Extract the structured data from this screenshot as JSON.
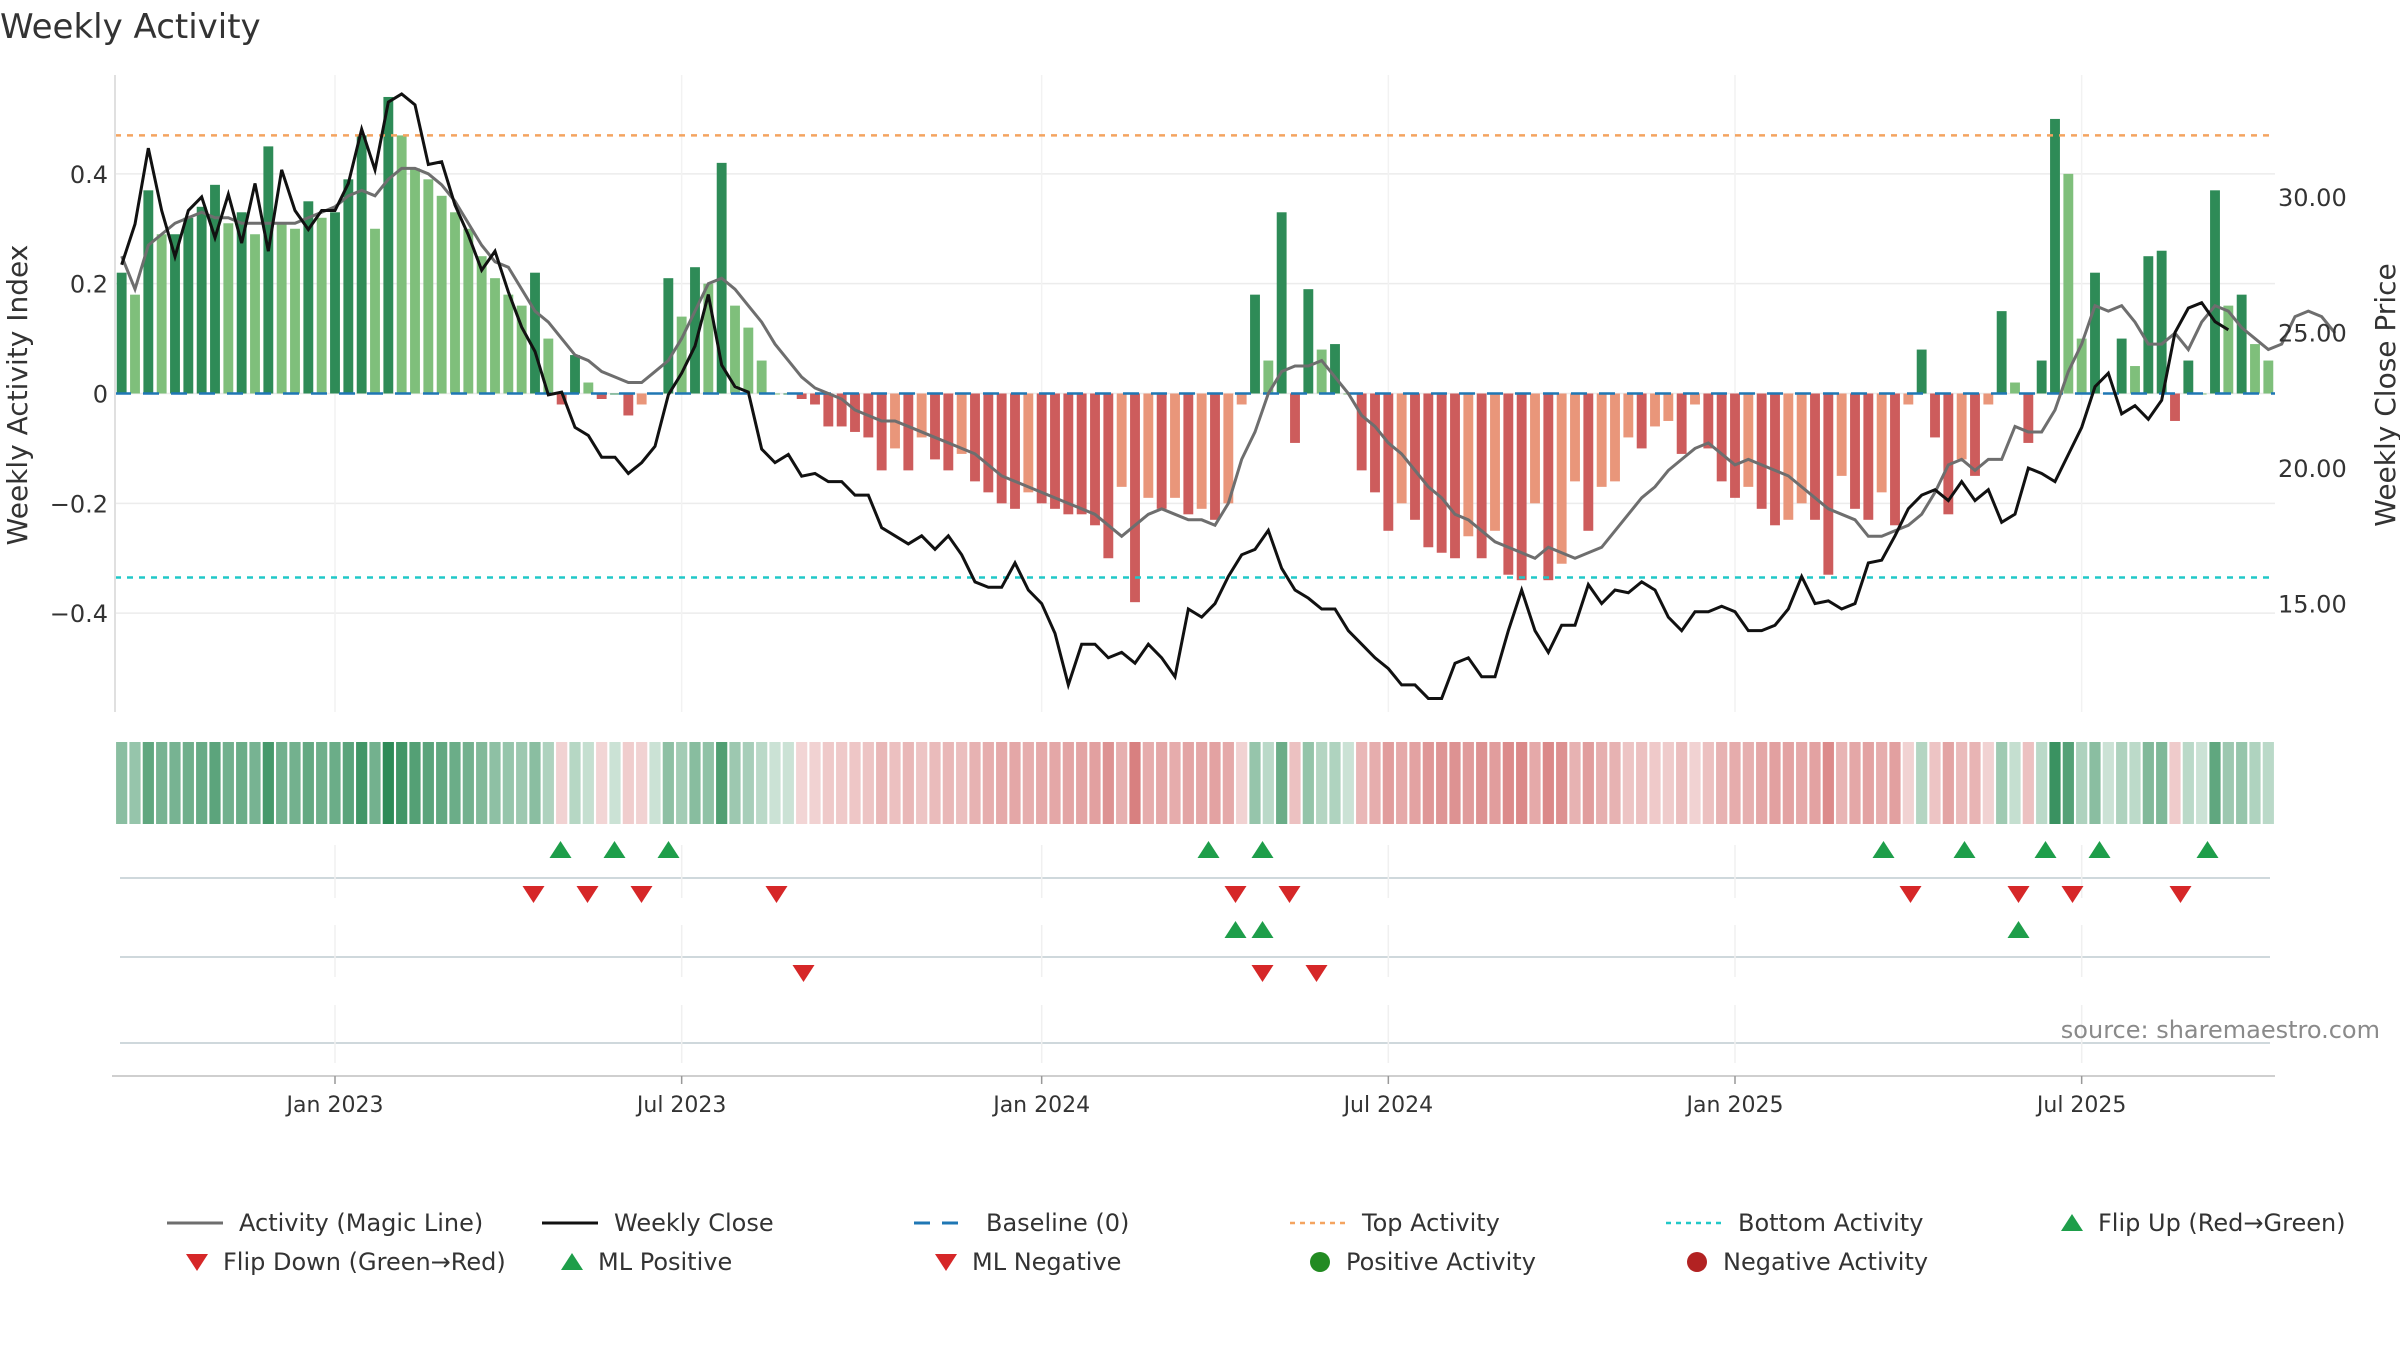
{
  "title": "Weekly Activity",
  "source": "source: sharemaestro.com",
  "colors": {
    "strong_green": "#2e8b57",
    "light_green": "#7fbf7b",
    "strong_red": "#cd5c5c",
    "light_red": "#e9967a",
    "magic_line": "#6e6e6e",
    "close_line": "#111111",
    "baseline": "#1f77b4",
    "top": "#f4a460",
    "bottom": "#20c8c8",
    "flip_up": "#1e9e4a",
    "flip_down": "#d62728",
    "positive_dot": "#228b22",
    "negative_dot": "#b22222"
  },
  "chart_data": {
    "type": "bar",
    "title": "Weekly Activity",
    "ylabel": "Weekly Activity Index",
    "y2label": "Weekly Close Price",
    "ylim": [
      -0.58,
      0.58
    ],
    "y2lim": [
      11.0,
      34.5
    ],
    "yticks": [
      -0.4,
      -0.2,
      0,
      0.2,
      0.4
    ],
    "ytick_labels": [
      "−0.4",
      "−0.2",
      "0",
      "0.2",
      "0.4"
    ],
    "y2ticks": [
      15,
      20,
      25,
      30
    ],
    "y2tick_labels": [
      "15.00",
      "20.00",
      "25.00",
      "30.00"
    ],
    "x_start_week": 0,
    "xticks": [
      16,
      42,
      69,
      95,
      121,
      147
    ],
    "xtick_labels": [
      "Jan 2023",
      "Jul 2023",
      "Jan 2024",
      "Jul 2024",
      "Jan 2025",
      "Jul 2025"
    ],
    "top_activity": 0.47,
    "bottom_activity": -0.335,
    "baseline": 0,
    "activity": [
      0.22,
      0.18,
      0.37,
      0.29,
      0.29,
      0.32,
      0.34,
      0.38,
      0.31,
      0.33,
      0.29,
      0.45,
      0.31,
      0.3,
      0.35,
      0.32,
      0.33,
      0.39,
      0.47,
      0.3,
      0.54,
      0.47,
      0.41,
      0.39,
      0.36,
      0.33,
      0.3,
      0.25,
      0.21,
      0.18,
      0.16,
      0.22,
      0.1,
      -0.02,
      0.07,
      0.02,
      -0.01,
      0.0,
      -0.04,
      -0.02,
      0.0,
      0.21,
      0.14,
      0.23,
      0.2,
      0.42,
      0.16,
      0.12,
      0.06,
      0.0,
      0.0,
      -0.01,
      -0.02,
      -0.06,
      -0.06,
      -0.07,
      -0.08,
      -0.14,
      -0.1,
      -0.14,
      -0.08,
      -0.12,
      -0.14,
      -0.11,
      -0.16,
      -0.18,
      -0.2,
      -0.21,
      -0.18,
      -0.2,
      -0.21,
      -0.22,
      -0.22,
      -0.24,
      -0.3,
      -0.17,
      -0.38,
      -0.19,
      -0.21,
      -0.19,
      -0.22,
      -0.21,
      -0.23,
      -0.2,
      -0.02,
      0.18,
      0.06,
      0.33,
      -0.09,
      0.19,
      0.08,
      0.09,
      0.0,
      -0.14,
      -0.18,
      -0.25,
      -0.2,
      -0.23,
      -0.28,
      -0.29,
      -0.3,
      -0.26,
      -0.3,
      -0.25,
      -0.33,
      -0.34,
      -0.2,
      -0.34,
      -0.31,
      -0.16,
      -0.25,
      -0.17,
      -0.16,
      -0.08,
      -0.1,
      -0.06,
      -0.05,
      -0.11,
      -0.02,
      -0.1,
      -0.16,
      -0.19,
      -0.17,
      -0.21,
      -0.24,
      -0.23,
      -0.2,
      -0.23,
      -0.33,
      -0.15,
      -0.21,
      -0.23,
      -0.18,
      -0.24,
      -0.02,
      0.08,
      -0.08,
      -0.22,
      -0.12,
      -0.15,
      -0.02,
      0.15,
      0.02,
      -0.09,
      0.06,
      0.5,
      0.4,
      0.1,
      0.22,
      0.0,
      0.1,
      0.05,
      0.25,
      0.26,
      -0.05,
      0.06,
      0.0,
      0.37,
      0.16,
      0.18,
      0.09,
      0.06
    ],
    "series": [
      {
        "name": "Activity (Magic Line)",
        "values": [
          0.25,
          0.19,
          0.27,
          0.29,
          0.31,
          0.32,
          0.33,
          0.32,
          0.32,
          0.31,
          0.31,
          0.31,
          0.31,
          0.31,
          0.32,
          0.33,
          0.34,
          0.36,
          0.37,
          0.36,
          0.39,
          0.41,
          0.41,
          0.4,
          0.38,
          0.35,
          0.31,
          0.27,
          0.24,
          0.23,
          0.19,
          0.15,
          0.13,
          0.1,
          0.07,
          0.06,
          0.04,
          0.03,
          0.02,
          0.02,
          0.04,
          0.06,
          0.1,
          0.15,
          0.2,
          0.21,
          0.19,
          0.16,
          0.13,
          0.09,
          0.06,
          0.03,
          0.01,
          0.0,
          -0.01,
          -0.03,
          -0.04,
          -0.05,
          -0.05,
          -0.06,
          -0.07,
          -0.08,
          -0.09,
          -0.1,
          -0.11,
          -0.13,
          -0.15,
          -0.16,
          -0.17,
          -0.18,
          -0.19,
          -0.2,
          -0.21,
          -0.22,
          -0.24,
          -0.26,
          -0.24,
          -0.22,
          -0.21,
          -0.22,
          -0.23,
          -0.23,
          -0.24,
          -0.2,
          -0.12,
          -0.07,
          0.0,
          0.04,
          0.05,
          0.05,
          0.06,
          0.03,
          0.0,
          -0.04,
          -0.06,
          -0.09,
          -0.11,
          -0.14,
          -0.17,
          -0.19,
          -0.22,
          -0.23,
          -0.25,
          -0.27,
          -0.28,
          -0.29,
          -0.3,
          -0.28,
          -0.29,
          -0.3,
          -0.29,
          -0.28,
          -0.25,
          -0.22,
          -0.19,
          -0.17,
          -0.14,
          -0.12,
          -0.1,
          -0.09,
          -0.11,
          -0.13,
          -0.12,
          -0.13,
          -0.14,
          -0.15,
          -0.17,
          -0.19,
          -0.21,
          -0.22,
          -0.23,
          -0.26,
          -0.26,
          -0.25,
          -0.24,
          -0.22,
          -0.18,
          -0.13,
          -0.12,
          -0.14,
          -0.12,
          -0.12,
          -0.06,
          -0.07,
          -0.07,
          -0.03,
          0.04,
          0.09,
          0.16,
          0.15,
          0.16,
          0.13,
          0.09,
          0.09,
          0.11,
          0.08,
          0.13,
          0.16,
          0.15,
          0.12,
          0.1,
          0.08,
          0.09,
          0.14,
          0.15,
          0.14,
          0.11
        ]
      },
      {
        "name": "Weekly Close",
        "values": [
          27.5,
          29.0,
          31.8,
          29.5,
          27.8,
          29.5,
          30.0,
          28.5,
          30.1,
          28.3,
          30.5,
          28.0,
          31.0,
          29.5,
          28.8,
          29.5,
          29.5,
          30.5,
          32.5,
          31.0,
          33.5,
          33.8,
          33.4,
          31.2,
          31.3,
          29.7,
          28.6,
          27.3,
          28.0,
          26.5,
          25.2,
          24.3,
          22.7,
          22.8,
          21.5,
          21.2,
          20.4,
          20.4,
          19.8,
          20.2,
          20.8,
          22.7,
          23.5,
          24.5,
          26.4,
          23.8,
          23.0,
          22.8,
          20.7,
          20.2,
          20.5,
          19.7,
          19.8,
          19.5,
          19.5,
          19.0,
          19.0,
          17.8,
          17.5,
          17.2,
          17.5,
          17.0,
          17.5,
          16.8,
          15.8,
          15.6,
          15.6,
          16.5,
          15.5,
          15.0,
          13.9,
          12.0,
          13.5,
          13.5,
          13.0,
          13.2,
          12.8,
          13.5,
          13.0,
          12.3,
          14.8,
          14.5,
          15.0,
          16.0,
          16.8,
          17.0,
          17.7,
          16.3,
          15.5,
          15.2,
          14.8,
          14.8,
          14.0,
          13.5,
          13.0,
          12.6,
          12.0,
          12.0,
          11.5,
          11.5,
          12.8,
          13.0,
          12.3,
          12.3,
          14.0,
          15.5,
          14.0,
          13.2,
          14.2,
          14.2,
          15.7,
          15.0,
          15.5,
          15.4,
          15.8,
          15.5,
          14.5,
          14.0,
          14.7,
          14.7,
          14.9,
          14.7,
          14.0,
          14.0,
          14.2,
          14.8,
          16.0,
          15.0,
          15.1,
          14.8,
          15.0,
          16.5,
          16.6,
          17.5,
          18.5,
          19.0,
          19.2,
          18.8,
          19.5,
          18.8,
          19.2,
          18.0,
          18.3,
          20.0,
          19.8,
          19.5,
          20.5,
          21.5,
          23.0,
          23.5,
          22.0,
          22.3,
          21.8,
          22.5,
          25.0,
          25.9,
          26.1,
          25.4,
          25.1
        ]
      }
    ],
    "signal_rows": [
      {
        "up": [
          16,
          18,
          20,
          40,
          42,
          65,
          68,
          71,
          73,
          77
        ],
        "down": [
          15,
          17,
          19,
          24,
          41,
          43,
          66,
          70,
          72,
          76
        ]
      },
      {
        "up": [
          41,
          42,
          70
        ],
        "down": [
          25,
          42,
          44
        ]
      },
      {
        "up": [],
        "down": []
      }
    ],
    "legend": [
      {
        "label": "Activity (Magic Line)",
        "kind": "line"
      },
      {
        "label": "Weekly Close",
        "kind": "close"
      },
      {
        "label": "Baseline (0)",
        "kind": "dash"
      },
      {
        "label": "Top Activity",
        "kind": "dot-orange"
      },
      {
        "label": "Bottom Activity",
        "kind": "dot-cyan"
      },
      {
        "label": "Flip Up (Red→Green)",
        "kind": "tri-up"
      },
      {
        "label": "Flip Down (Green→Red)",
        "kind": "tri-down"
      },
      {
        "label": "ML Positive",
        "kind": "tri-up"
      },
      {
        "label": "ML Negative",
        "kind": "tri-down"
      },
      {
        "label": "Positive Activity",
        "kind": "circle-green"
      },
      {
        "label": "Negative Activity",
        "kind": "circle-red"
      }
    ]
  }
}
